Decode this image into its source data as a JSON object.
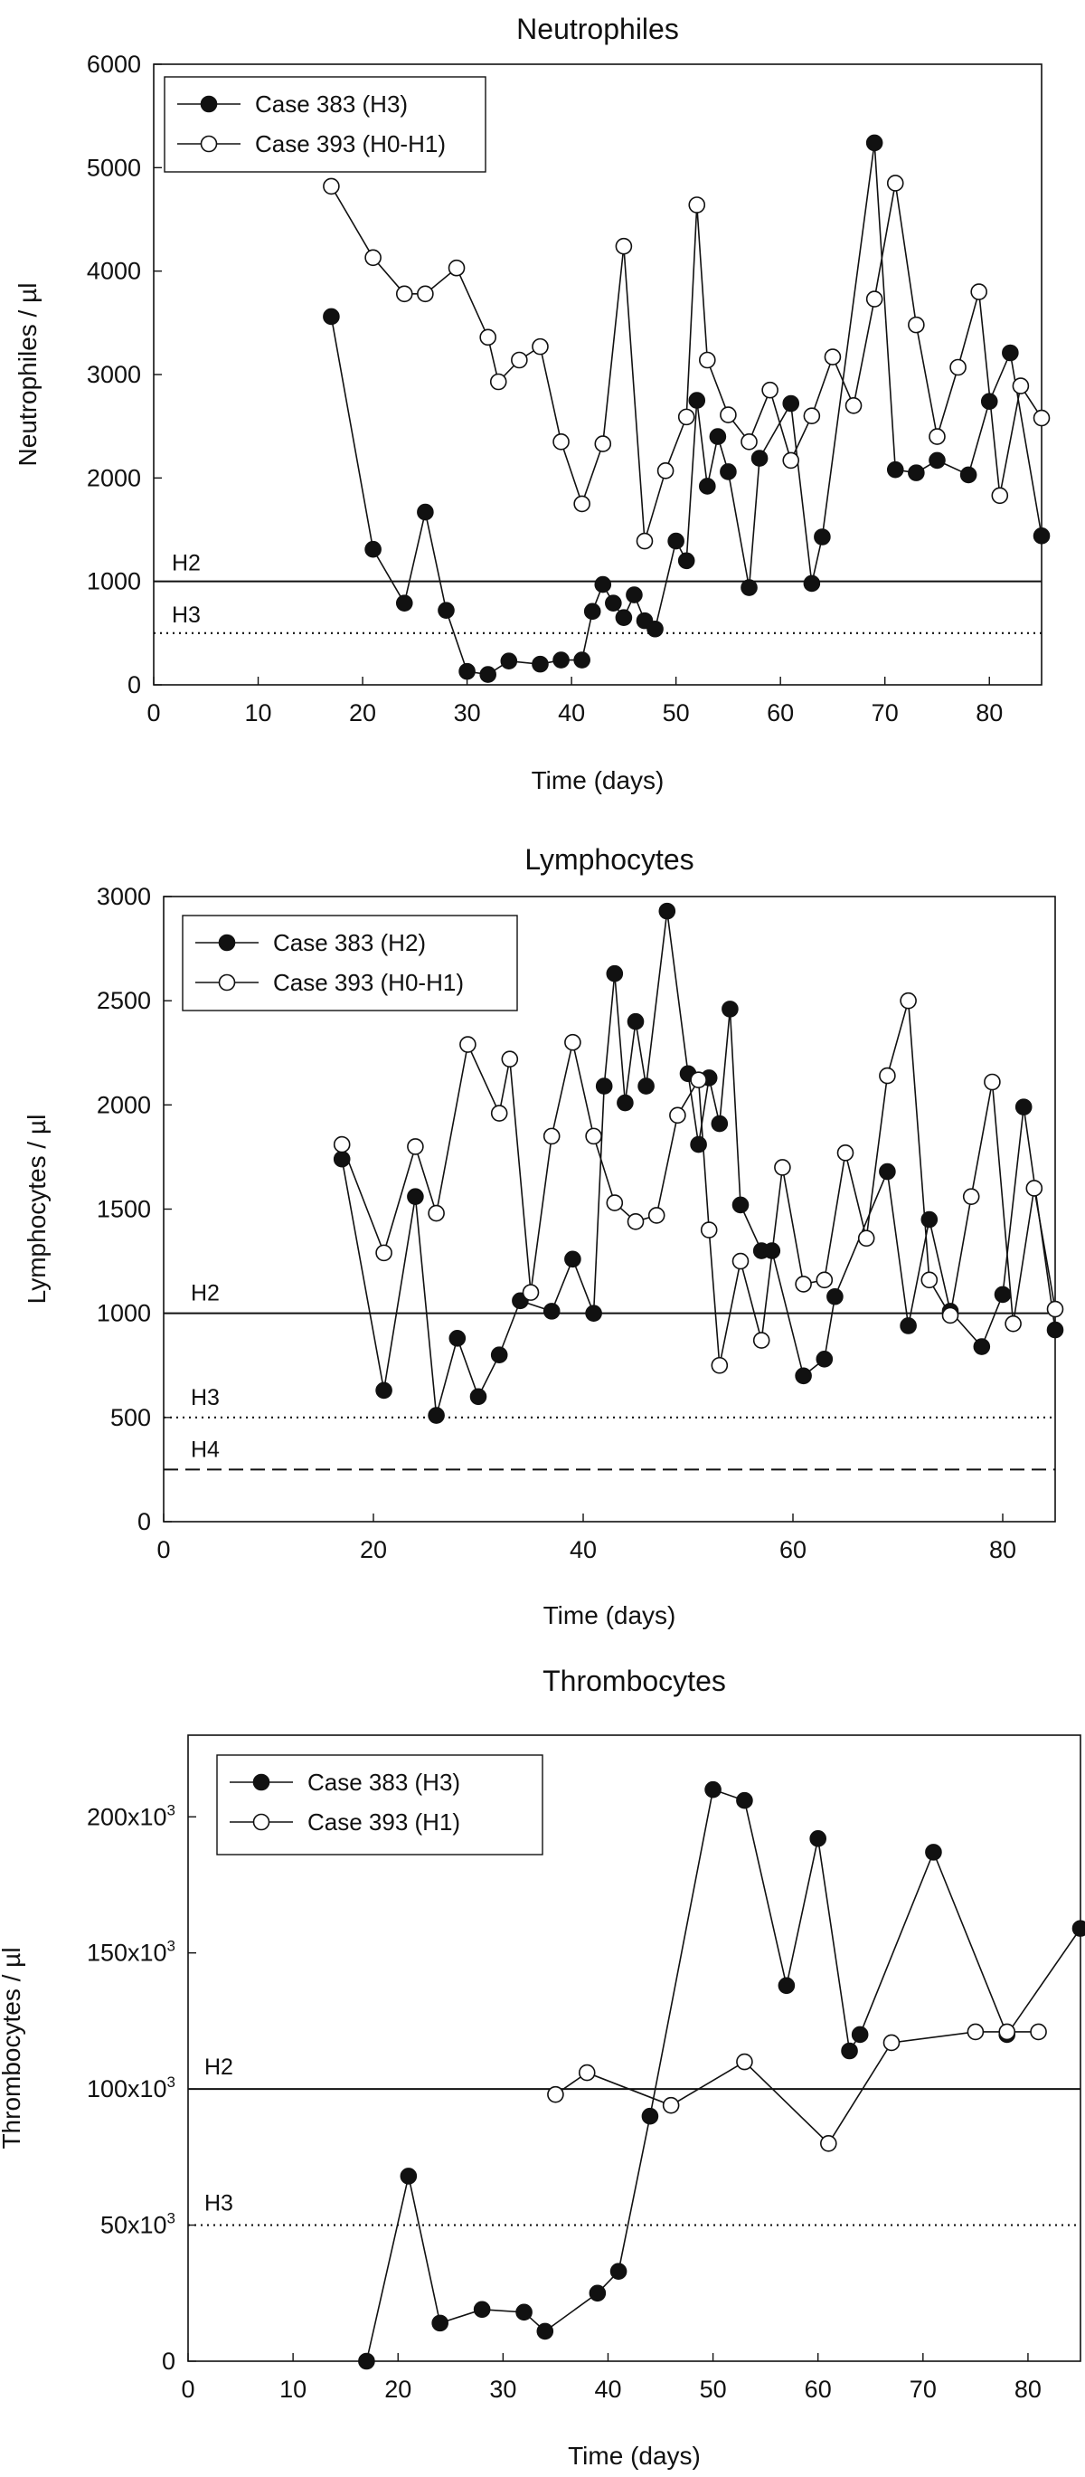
{
  "chart_data": [
    {
      "type": "line",
      "title": "Neutrophiles",
      "xlabel": "Time (days)",
      "ylabel": "Neutrophiles / µl",
      "xlim": [
        0,
        85
      ],
      "ylim": [
        0,
        6000
      ],
      "xticks": [
        0,
        10,
        20,
        30,
        40,
        50,
        60,
        70,
        80
      ],
      "xtick_labels": [
        "0",
        "10",
        "20",
        "30",
        "40",
        "50",
        "60",
        "70",
        "80"
      ],
      "yticks": [
        0,
        1000,
        2000,
        3000,
        4000,
        5000,
        6000
      ],
      "ytick_labels": [
        "0",
        "1000",
        "2000",
        "3000",
        "4000",
        "5000",
        "6000"
      ],
      "legend_position": "top-left",
      "reference_lines": [
        {
          "label": "H2",
          "y": 1000,
          "style": "solid"
        },
        {
          "label": "H3",
          "y": 500,
          "style": "dotted"
        }
      ],
      "series": [
        {
          "name": "Case 383 (H3)",
          "marker": "filled",
          "x": [
            17,
            21,
            24,
            26,
            28,
            30,
            32,
            34,
            37,
            39,
            41,
            42,
            43,
            44,
            45,
            46,
            47,
            48,
            50,
            51,
            52,
            53,
            54,
            55,
            57,
            58,
            61,
            63,
            64,
            69,
            71,
            73,
            75,
            78,
            80,
            82,
            85
          ],
          "values": [
            3560,
            1310,
            790,
            1670,
            720,
            130,
            100,
            230,
            200,
            240,
            240,
            710,
            970,
            790,
            650,
            870,
            620,
            540,
            1390,
            1200,
            2750,
            1920,
            2400,
            2060,
            940,
            2190,
            2720,
            980,
            1430,
            5240,
            2080,
            2050,
            2170,
            2030,
            2740,
            3210,
            1440
          ]
        },
        {
          "name": "Case 393 (H0-H1)",
          "marker": "open",
          "x": [
            17,
            21,
            24,
            26,
            29,
            32,
            33,
            35,
            37,
            39,
            41,
            43,
            45,
            47,
            49,
            51,
            52,
            53,
            55,
            57,
            59,
            61,
            63,
            65,
            67,
            69,
            71,
            73,
            75,
            77,
            79,
            81,
            83,
            85
          ],
          "values": [
            4820,
            4130,
            3780,
            3780,
            4030,
            3360,
            2930,
            3140,
            3270,
            2350,
            1750,
            2330,
            4240,
            1390,
            2070,
            2590,
            4640,
            3140,
            2610,
            2350,
            2850,
            2170,
            2600,
            3170,
            2700,
            3730,
            4850,
            3480,
            2400,
            3070,
            3800,
            1830,
            2890,
            2580
          ]
        }
      ]
    },
    {
      "type": "line",
      "title": "Lymphocytes",
      "xlabel": "Time (days)",
      "ylabel": "Lymphocytes / µl",
      "xlim": [
        0,
        85
      ],
      "ylim": [
        0,
        3000
      ],
      "xticks": [
        0,
        20,
        40,
        60,
        80
      ],
      "xtick_labels": [
        "0",
        "20",
        "40",
        "60",
        "80"
      ],
      "yticks": [
        0,
        500,
        1000,
        1500,
        2000,
        2500,
        3000
      ],
      "ytick_labels": [
        "0",
        "500",
        "1000",
        "1500",
        "2000",
        "2500",
        "3000"
      ],
      "legend_position": "top-left",
      "reference_lines": [
        {
          "label": "H2",
          "y": 1000,
          "style": "solid"
        },
        {
          "label": "H3",
          "y": 500,
          "style": "dotted"
        },
        {
          "label": "H4",
          "y": 250,
          "style": "dashed"
        }
      ],
      "series": [
        {
          "name": "Case 383 (H2)",
          "marker": "filled",
          "x": [
            17,
            21,
            24,
            26,
            28,
            30,
            32,
            34,
            37,
            39,
            41,
            42,
            43,
            44,
            45,
            46,
            48,
            50,
            51,
            52,
            53,
            54,
            55,
            57,
            58,
            61,
            63,
            64,
            69,
            71,
            73,
            75,
            78,
            80,
            82,
            85
          ],
          "values": [
            1740,
            630,
            1560,
            510,
            880,
            600,
            800,
            1060,
            1010,
            1260,
            1000,
            2090,
            2630,
            2010,
            2400,
            2090,
            2930,
            2150,
            1810,
            2130,
            1910,
            2460,
            1520,
            1300,
            1300,
            700,
            780,
            1080,
            1680,
            940,
            1450,
            1010,
            840,
            1090,
            1990,
            920
          ]
        },
        {
          "name": "Case 393 (H0-H1)",
          "marker": "open",
          "x": [
            17,
            21,
            24,
            26,
            29,
            32,
            33,
            35,
            37,
            39,
            41,
            43,
            45,
            47,
            49,
            51,
            52,
            53,
            55,
            57,
            59,
            61,
            63,
            65,
            67,
            69,
            71,
            73,
            75,
            77,
            79,
            81,
            83,
            85
          ],
          "values": [
            1810,
            1290,
            1800,
            1480,
            2290,
            1960,
            2220,
            1100,
            1850,
            2300,
            1850,
            1530,
            1440,
            1470,
            1950,
            2120,
            1400,
            750,
            1250,
            870,
            1700,
            1140,
            1160,
            1770,
            1360,
            2140,
            2500,
            1160,
            990,
            1560,
            2110,
            950,
            1600,
            1020
          ]
        }
      ]
    },
    {
      "type": "line",
      "title": "Thrombocytes",
      "xlabel": "Time (days)",
      "ylabel": "Thrombocytes / µl",
      "xlim": [
        0,
        85
      ],
      "ylim": [
        0,
        230000
      ],
      "xticks": [
        0,
        10,
        20,
        30,
        40,
        50,
        60,
        70,
        80
      ],
      "xtick_labels": [
        "0",
        "10",
        "20",
        "30",
        "40",
        "50",
        "60",
        "70",
        "80"
      ],
      "yticks": [
        0,
        50000,
        100000,
        150000,
        200000
      ],
      "ytick_labels": [
        "0",
        "50x10",
        "100x10",
        "150x10",
        "200x10"
      ],
      "ytick_superscript": "3",
      "legend_position": "top-left",
      "reference_lines": [
        {
          "label": "H2",
          "y": 100000,
          "style": "solid"
        },
        {
          "label": "H3",
          "y": 50000,
          "style": "dotted"
        }
      ],
      "series": [
        {
          "name": "Case 383 (H3)",
          "marker": "filled",
          "x": [
            17,
            21,
            24,
            28,
            32,
            34,
            39,
            41,
            44,
            50,
            53,
            57,
            60,
            63,
            64,
            71,
            78,
            85
          ],
          "values": [
            0,
            68000,
            14000,
            19000,
            18000,
            11000,
            25000,
            33000,
            90000,
            210000,
            206000,
            138000,
            192000,
            114000,
            120000,
            187000,
            120000,
            159000
          ]
        },
        {
          "name": "Case 393 (H1)",
          "marker": "open",
          "x": [
            35,
            38,
            46,
            53,
            61,
            67,
            75,
            78,
            81
          ],
          "values": [
            98000,
            106000,
            94000,
            110000,
            80000,
            117000,
            121000,
            121000,
            121000
          ]
        }
      ]
    }
  ]
}
